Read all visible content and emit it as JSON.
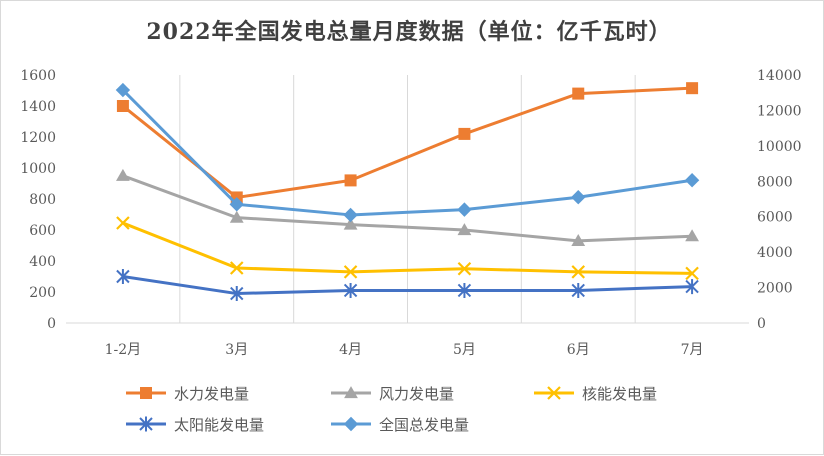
{
  "chart_data": {
    "type": "line",
    "title": "2022年全国发电总量月度数据（单位：亿千瓦时）",
    "categories": [
      "1-2月",
      "3月",
      "4月",
      "5月",
      "6月",
      "7月"
    ],
    "y_left": {
      "min": 0,
      "max": 1600,
      "ticks": [
        "0",
        "200",
        "400",
        "600",
        "800",
        "1000",
        "1200",
        "1400",
        "1600"
      ]
    },
    "y_right": {
      "min": 0,
      "max": 14000,
      "ticks": [
        "0",
        "2000",
        "4000",
        "6000",
        "8000",
        "10000",
        "12000",
        "14000"
      ]
    },
    "grid": "vertical",
    "legend_position": "bottom",
    "series": [
      {
        "name": "水力发电量",
        "axis": "left",
        "color": "#ED7D31",
        "marker": "square",
        "values": [
          1400,
          810,
          920,
          1220,
          1480,
          1515
        ]
      },
      {
        "name": "风力发电量",
        "axis": "left",
        "color": "#A5A5A5",
        "marker": "triangle",
        "values": [
          950,
          680,
          635,
          600,
          530,
          560
        ]
      },
      {
        "name": "核能发电量",
        "axis": "left",
        "color": "#FFC000",
        "marker": "x",
        "values": [
          645,
          355,
          330,
          350,
          330,
          320
        ]
      },
      {
        "name": "太阳能发电量",
        "axis": "left",
        "color": "#4472C4",
        "marker": "star",
        "values": [
          300,
          190,
          210,
          210,
          210,
          235
        ]
      },
      {
        "name": "全国总发电量",
        "axis": "right",
        "color": "#5B9BD5",
        "marker": "diamond",
        "values": [
          13150,
          6700,
          6100,
          6400,
          7100,
          8060
        ]
      }
    ]
  }
}
